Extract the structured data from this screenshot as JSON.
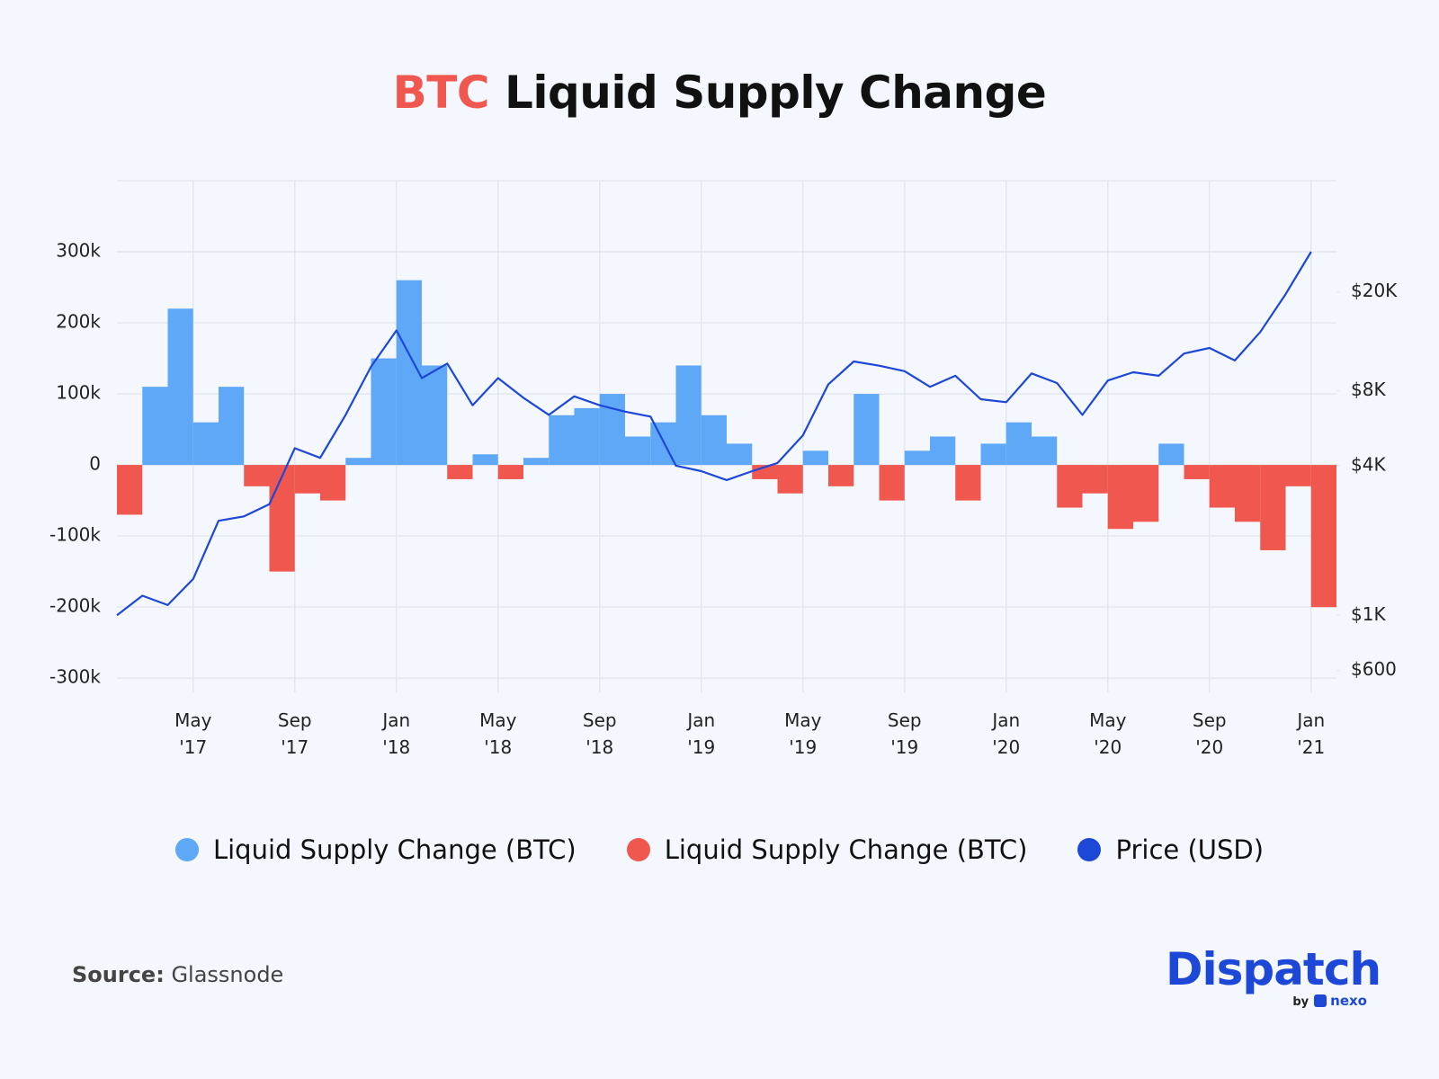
{
  "chart_data": {
    "type": "bar",
    "title": "BTC Liquid Supply Change",
    "x": [
      "2017-02",
      "2017-03",
      "2017-04",
      "2017-05",
      "2017-06",
      "2017-07",
      "2017-08",
      "2017-09",
      "2017-10",
      "2017-11",
      "2017-12",
      "2018-01",
      "2018-02",
      "2018-03",
      "2018-04",
      "2018-05",
      "2018-06",
      "2018-07",
      "2018-08",
      "2018-09",
      "2018-10",
      "2018-11",
      "2018-12",
      "2019-01",
      "2019-02",
      "2019-03",
      "2019-04",
      "2019-05",
      "2019-06",
      "2019-07",
      "2019-08",
      "2019-09",
      "2019-10",
      "2019-11",
      "2019-12",
      "2020-01",
      "2020-02",
      "2020-03",
      "2020-04",
      "2020-05",
      "2020-06",
      "2020-07",
      "2020-08",
      "2020-09",
      "2020-10",
      "2020-11",
      "2020-12",
      "2021-01"
    ],
    "series": [
      {
        "name": "Liquid Supply Change (BTC)",
        "color": "#5ea8f7",
        "values": [
          null,
          110000,
          220000,
          60000,
          110000,
          null,
          null,
          null,
          null,
          10000,
          150000,
          260000,
          140000,
          null,
          15000,
          null,
          10000,
          70000,
          80000,
          100000,
          40000,
          60000,
          140000,
          70000,
          30000,
          null,
          null,
          20000,
          null,
          100000,
          null,
          20000,
          40000,
          null,
          30000,
          60000,
          40000,
          null,
          null,
          null,
          null,
          30000,
          null,
          null,
          null,
          null,
          null,
          null
        ]
      },
      {
        "name": "Liquid Supply Change (BTC)",
        "color": "#f0574f",
        "values": [
          -70000,
          null,
          null,
          null,
          null,
          -30000,
          -150000,
          -40000,
          -50000,
          null,
          null,
          null,
          null,
          -20000,
          null,
          -20000,
          null,
          null,
          null,
          null,
          null,
          null,
          null,
          null,
          null,
          -20000,
          -40000,
          null,
          -30000,
          null,
          -50000,
          null,
          null,
          -50000,
          null,
          null,
          null,
          -60000,
          -40000,
          -90000,
          -80000,
          null,
          -20000,
          -60000,
          -80000,
          -120000,
          -30000,
          -200000
        ]
      },
      {
        "name": "Price (USD)",
        "color": "#1d47d6",
        "type": "line",
        "axis": "y2",
        "values": [
          1000,
          1200,
          1100,
          1400,
          2400,
          2500,
          2800,
          4700,
          4300,
          6400,
          10000,
          14000,
          9000,
          10300,
          7000,
          9000,
          7500,
          6400,
          7600,
          7000,
          6600,
          6300,
          4000,
          3800,
          3500,
          3800,
          4100,
          5300,
          8500,
          10500,
          10100,
          9600,
          8300,
          9200,
          7400,
          7200,
          9400,
          8600,
          6400,
          8800,
          9500,
          9200,
          11300,
          11900,
          10600,
          13800,
          19600,
          29000
        ]
      }
    ],
    "xlim": [
      "2017-02",
      "2021-02"
    ],
    "xticks": [
      {
        "value": "2017-05",
        "label": "May\n'17"
      },
      {
        "value": "2017-09",
        "label": "Sep\n'17"
      },
      {
        "value": "2018-01",
        "label": "Jan\n'18"
      },
      {
        "value": "2018-05",
        "label": "May\n'18"
      },
      {
        "value": "2018-09",
        "label": "Sep\n'18"
      },
      {
        "value": "2019-01",
        "label": "Jan\n'19"
      },
      {
        "value": "2019-05",
        "label": "May\n'19"
      },
      {
        "value": "2019-09",
        "label": "Sep\n'19"
      },
      {
        "value": "2020-01",
        "label": "Jan\n'20"
      },
      {
        "value": "2020-05",
        "label": "May\n'20"
      },
      {
        "value": "2020-09",
        "label": "Sep\n'20"
      },
      {
        "value": "2021-01",
        "label": "Jan\n'21"
      }
    ],
    "ylim": [
      -320000,
      400000
    ],
    "yticks": [
      {
        "value": -300000,
        "label": "-300k"
      },
      {
        "value": -200000,
        "label": "-200k"
      },
      {
        "value": -100000,
        "label": "-100k"
      },
      0,
      {
        "value": 100000,
        "label": "100k"
      },
      {
        "value": 200000,
        "label": "200k"
      },
      {
        "value": 300000,
        "label": "300k"
      }
    ],
    "y2lim": [
      490,
      56000
    ],
    "y2log": true,
    "y2ticks": [
      {
        "value": 600,
        "label": "$600"
      },
      {
        "value": 1000,
        "label": "$1K"
      },
      {
        "value": 4000,
        "label": "$4K"
      },
      {
        "value": 8000,
        "label": "$8K"
      },
      {
        "value": 20000,
        "label": "$20K"
      }
    ],
    "grid": true,
    "legend": "bottom",
    "source_label": "Source:",
    "source": "Glassnode",
    "brand": {
      "name": "Dispatch",
      "by": "by",
      "partner": "nexo"
    }
  }
}
